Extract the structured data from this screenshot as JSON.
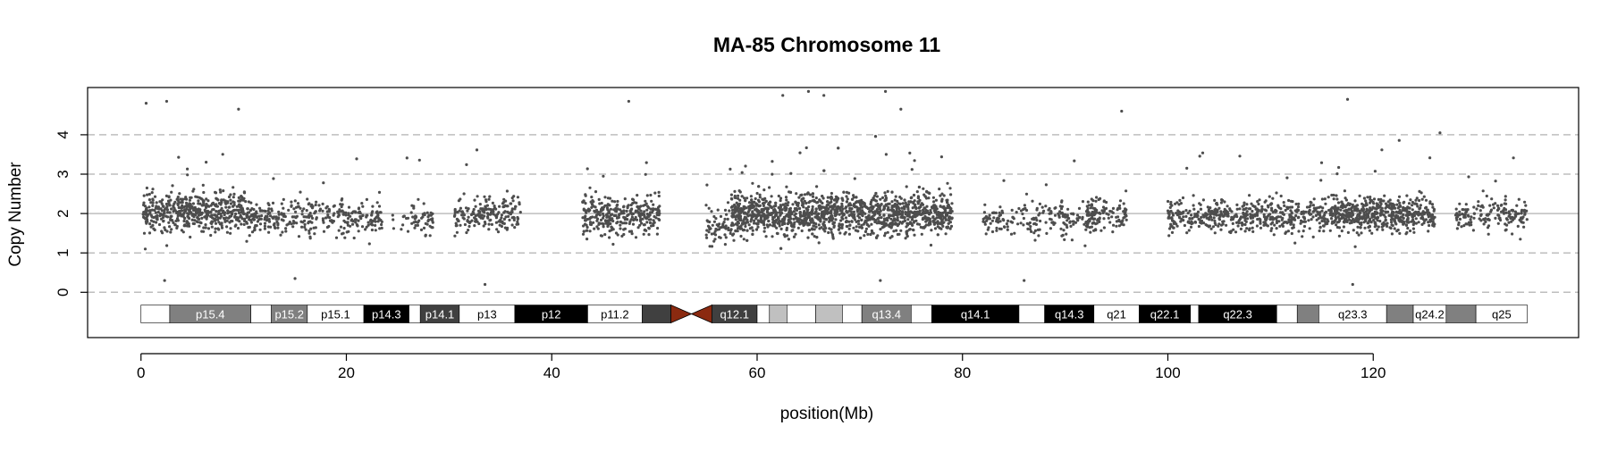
{
  "chart_data": {
    "type": "scatter",
    "title": "MA-85  Chromosome 11",
    "xlabel": "position(Mb)",
    "ylabel": "Copy Number",
    "xlim": [
      -5.2,
      140
    ],
    "ylim": [
      -1.15,
      5.2
    ],
    "xticks": [
      0,
      20,
      40,
      60,
      80,
      100,
      120
    ],
    "yticks": [
      0,
      1,
      2,
      3,
      4
    ],
    "hlines_dashed": [
      0,
      1,
      3,
      4
    ],
    "hline_solid": 2,
    "grid": true,
    "legend": "none",
    "point_color": "#4d4d4d",
    "centromere_color": "#8b2a10",
    "point_clusters": [
      {
        "x_start": 0.2,
        "x_end": 10.5,
        "count": 520,
        "center": 2.05,
        "spread": 0.55
      },
      {
        "x_start": 10.5,
        "x_end": 23.5,
        "count": 330,
        "center": 1.9,
        "spread": 0.5
      },
      {
        "x_start": 24.5,
        "x_end": 26.5,
        "count": 15,
        "center": 1.9,
        "spread": 0.4
      },
      {
        "x_start": 26.5,
        "x_end": 28.5,
        "count": 45,
        "center": 1.85,
        "spread": 0.45
      },
      {
        "x_start": 30.5,
        "x_end": 37,
        "count": 190,
        "center": 2.0,
        "spread": 0.5
      },
      {
        "x_start": 43,
        "x_end": 50.5,
        "count": 320,
        "center": 1.95,
        "spread": 0.55
      },
      {
        "x_start": 55,
        "x_end": 57.5,
        "count": 60,
        "center": 1.7,
        "spread": 0.55
      },
      {
        "x_start": 57.5,
        "x_end": 79,
        "count": 1650,
        "center": 2.0,
        "spread": 0.6
      },
      {
        "x_start": 82,
        "x_end": 93,
        "count": 200,
        "center": 1.85,
        "spread": 0.5
      },
      {
        "x_start": 92,
        "x_end": 96,
        "count": 110,
        "center": 2.0,
        "spread": 0.45
      },
      {
        "x_start": 100,
        "x_end": 110,
        "count": 320,
        "center": 1.95,
        "spread": 0.45
      },
      {
        "x_start": 110,
        "x_end": 116,
        "count": 200,
        "center": 1.95,
        "spread": 0.45
      },
      {
        "x_start": 116,
        "x_end": 126,
        "count": 520,
        "center": 2.0,
        "spread": 0.5
      },
      {
        "x_start": 128,
        "x_end": 135,
        "count": 160,
        "center": 1.95,
        "spread": 0.45
      }
    ],
    "outliers": [
      [
        0.5,
        4.8
      ],
      [
        2.5,
        4.85
      ],
      [
        9.5,
        4.65
      ],
      [
        47.5,
        4.85
      ],
      [
        62.5,
        5.0
      ],
      [
        65,
        5.1
      ],
      [
        66.5,
        5.0
      ],
      [
        72.5,
        5.1
      ],
      [
        74,
        4.65
      ],
      [
        95.5,
        4.6
      ],
      [
        117.5,
        4.9
      ],
      [
        126.5,
        4.05
      ],
      [
        33.5,
        0.2
      ],
      [
        72,
        0.3
      ],
      [
        118,
        0.2
      ],
      [
        2.3,
        0.3
      ],
      [
        15,
        0.35
      ],
      [
        86,
        0.3
      ]
    ],
    "ideogram": {
      "y_center": -0.55,
      "bands": [
        {
          "start": 0,
          "end": 2.8,
          "name": "",
          "shade": "white"
        },
        {
          "start": 2.8,
          "end": 10.7,
          "name": "p15.4",
          "shade": "gpos50"
        },
        {
          "start": 10.7,
          "end": 12.7,
          "name": "",
          "shade": "white"
        },
        {
          "start": 12.7,
          "end": 16.2,
          "name": "p15.2",
          "shade": "gpos50"
        },
        {
          "start": 16.2,
          "end": 21.7,
          "name": "p15.1",
          "shade": "white"
        },
        {
          "start": 21.7,
          "end": 26.1,
          "name": "p14.3",
          "shade": "gpos100"
        },
        {
          "start": 26.1,
          "end": 27.2,
          "name": "",
          "shade": "white"
        },
        {
          "start": 27.2,
          "end": 31.0,
          "name": "p14.1",
          "shade": "gpos75"
        },
        {
          "start": 31.0,
          "end": 36.4,
          "name": "p13",
          "shade": "white"
        },
        {
          "start": 36.4,
          "end": 43.5,
          "name": "p12",
          "shade": "gpos100"
        },
        {
          "start": 43.5,
          "end": 48.8,
          "name": "p11.2",
          "shade": "white"
        },
        {
          "start": 48.8,
          "end": 51.6,
          "name": "",
          "shade": "gpos75"
        },
        {
          "start": 51.6,
          "end": 55.6,
          "name": "",
          "shade": "acen"
        },
        {
          "start": 55.6,
          "end": 60.0,
          "name": "q12.1",
          "shade": "gpos75"
        },
        {
          "start": 60.0,
          "end": 61.2,
          "name": "",
          "shade": "white"
        },
        {
          "start": 61.2,
          "end": 62.9,
          "name": "",
          "shade": "gpos25"
        },
        {
          "start": 62.9,
          "end": 65.7,
          "name": "",
          "shade": "white"
        },
        {
          "start": 65.7,
          "end": 68.3,
          "name": "",
          "shade": "gpos25"
        },
        {
          "start": 68.3,
          "end": 70.2,
          "name": "",
          "shade": "white"
        },
        {
          "start": 70.2,
          "end": 75.0,
          "name": "q13.4",
          "shade": "gpos50"
        },
        {
          "start": 75.0,
          "end": 77.0,
          "name": "",
          "shade": "white"
        },
        {
          "start": 77.0,
          "end": 85.5,
          "name": "q14.1",
          "shade": "gpos100"
        },
        {
          "start": 85.5,
          "end": 88.0,
          "name": "",
          "shade": "white"
        },
        {
          "start": 88.0,
          "end": 92.8,
          "name": "q14.3",
          "shade": "gpos100"
        },
        {
          "start": 92.8,
          "end": 97.2,
          "name": "q21",
          "shade": "white"
        },
        {
          "start": 97.2,
          "end": 102.2,
          "name": "q22.1",
          "shade": "gpos100"
        },
        {
          "start": 102.2,
          "end": 103.0,
          "name": "",
          "shade": "white"
        },
        {
          "start": 103.0,
          "end": 110.6,
          "name": "q22.3",
          "shade": "gpos100"
        },
        {
          "start": 110.6,
          "end": 112.6,
          "name": "",
          "shade": "white"
        },
        {
          "start": 112.6,
          "end": 114.7,
          "name": "",
          "shade": "gpos50"
        },
        {
          "start": 114.7,
          "end": 121.3,
          "name": "q23.3",
          "shade": "white"
        },
        {
          "start": 121.3,
          "end": 123.9,
          "name": "",
          "shade": "gpos50"
        },
        {
          "start": 123.9,
          "end": 127.1,
          "name": "q24.2",
          "shade": "white"
        },
        {
          "start": 127.1,
          "end": 130.0,
          "name": "",
          "shade": "gpos50"
        },
        {
          "start": 130.0,
          "end": 135.0,
          "name": "q25",
          "shade": "white"
        }
      ],
      "shade_colors": {
        "white": "#ffffff",
        "gpos25": "#c0c0c0",
        "gpos50": "#808080",
        "gpos75": "#404040",
        "gpos100": "#000000",
        "acen": "#8b2a10"
      }
    }
  }
}
